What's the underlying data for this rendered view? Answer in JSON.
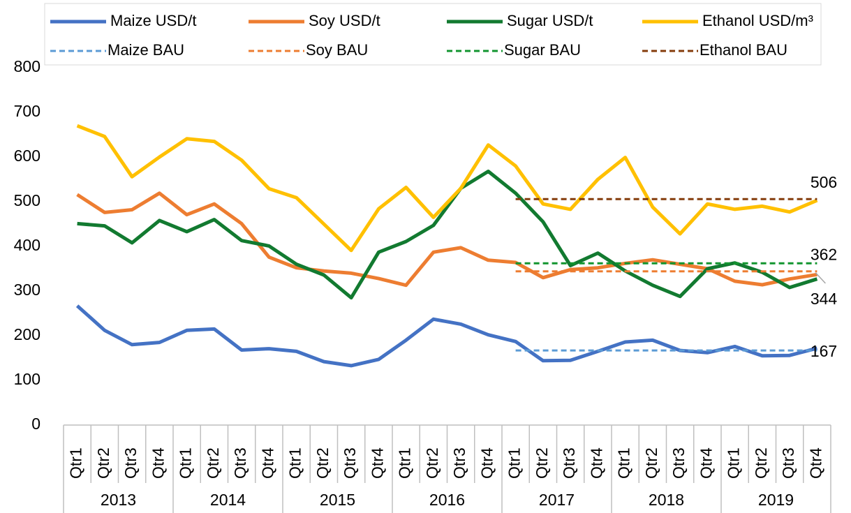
{
  "chart_data": {
    "type": "line",
    "categories": [
      "Qtr1",
      "Qtr2",
      "Qtr3",
      "Qtr4",
      "Qtr1",
      "Qtr2",
      "Qtr3",
      "Qtr4",
      "Qtr1",
      "Qtr2",
      "Qtr3",
      "Qtr4",
      "Qtr1",
      "Qtr2",
      "Qtr3",
      "Qtr4",
      "Qtr1",
      "Qtr2",
      "Qtr3",
      "Qtr4",
      "Qtr1",
      "Qtr2",
      "Qtr3",
      "Qtr4",
      "Qtr1",
      "Qtr2",
      "Qtr3",
      "Qtr4"
    ],
    "category_groups": [
      "2013",
      "2014",
      "2015",
      "2016",
      "2017",
      "2018",
      "2019"
    ],
    "ylim": [
      0,
      800
    ],
    "yticks": [
      0,
      100,
      200,
      300,
      400,
      500,
      600,
      700,
      800
    ],
    "grid": false,
    "legend": "top",
    "series": [
      {
        "name": "Maize USD/t",
        "color": "#4472c4",
        "dashed": false,
        "values": [
          267,
          212,
          180,
          185,
          212,
          215,
          168,
          171,
          165,
          142,
          133,
          147,
          190,
          237,
          226,
          202,
          187,
          144,
          145,
          165,
          186,
          190,
          167,
          162,
          176,
          155,
          156,
          172
        ]
      },
      {
        "name": "Soy USD/t",
        "color": "#ed7d31",
        "dashed": false,
        "values": [
          516,
          476,
          482,
          519,
          471,
          495,
          451,
          376,
          352,
          345,
          340,
          328,
          313,
          387,
          397,
          369,
          364,
          330,
          348,
          352,
          362,
          370,
          360,
          350,
          322,
          314,
          327,
          337
        ]
      },
      {
        "name": "Sugar USD/t",
        "color": "#127a30",
        "dashed": false,
        "values": [
          451,
          446,
          408,
          458,
          433,
          460,
          413,
          401,
          360,
          336,
          285,
          387,
          411,
          447,
          530,
          568,
          519,
          455,
          357,
          385,
          345,
          313,
          288,
          350,
          363,
          342,
          308,
          327
        ]
      },
      {
        "name": "Ethanol USD/m³",
        "color": "#ffc000",
        "dashed": false,
        "values": [
          670,
          646,
          556,
          600,
          641,
          635,
          593,
          529,
          509,
          450,
          391,
          484,
          532,
          465,
          530,
          627,
          580,
          495,
          483,
          550,
          599,
          488,
          428,
          495,
          483,
          490,
          477,
          503
        ]
      },
      {
        "name": "Maize BAU",
        "color": "#5b9bd5",
        "dashed": true,
        "data_labels": "last",
        "values": [
          null,
          null,
          null,
          null,
          null,
          null,
          null,
          null,
          null,
          null,
          null,
          null,
          null,
          null,
          null,
          null,
          167,
          167,
          167,
          167,
          167,
          167,
          167,
          167,
          167,
          167,
          167,
          167
        ]
      },
      {
        "name": "Soy BAU",
        "color": "#ed7d31",
        "dashed": true,
        "data_labels": "last",
        "values": [
          null,
          null,
          null,
          null,
          null,
          null,
          null,
          null,
          null,
          null,
          null,
          null,
          null,
          null,
          null,
          null,
          344,
          344,
          344,
          344,
          344,
          344,
          344,
          344,
          344,
          344,
          344,
          344
        ]
      },
      {
        "name": "Sugar BAU",
        "color": "#12952f",
        "dashed": true,
        "data_labels": "last",
        "values": [
          null,
          null,
          null,
          null,
          null,
          null,
          null,
          null,
          null,
          null,
          null,
          null,
          null,
          null,
          null,
          null,
          362,
          362,
          362,
          362,
          362,
          362,
          362,
          362,
          362,
          362,
          362,
          362
        ]
      },
      {
        "name": "Ethanol BAU",
        "color": "#843c0c",
        "dashed": true,
        "data_labels": "last",
        "values": [
          null,
          null,
          null,
          null,
          null,
          null,
          null,
          null,
          null,
          null,
          null,
          null,
          null,
          null,
          null,
          null,
          506,
          506,
          506,
          506,
          506,
          506,
          506,
          506,
          506,
          506,
          506,
          506
        ]
      }
    ]
  }
}
